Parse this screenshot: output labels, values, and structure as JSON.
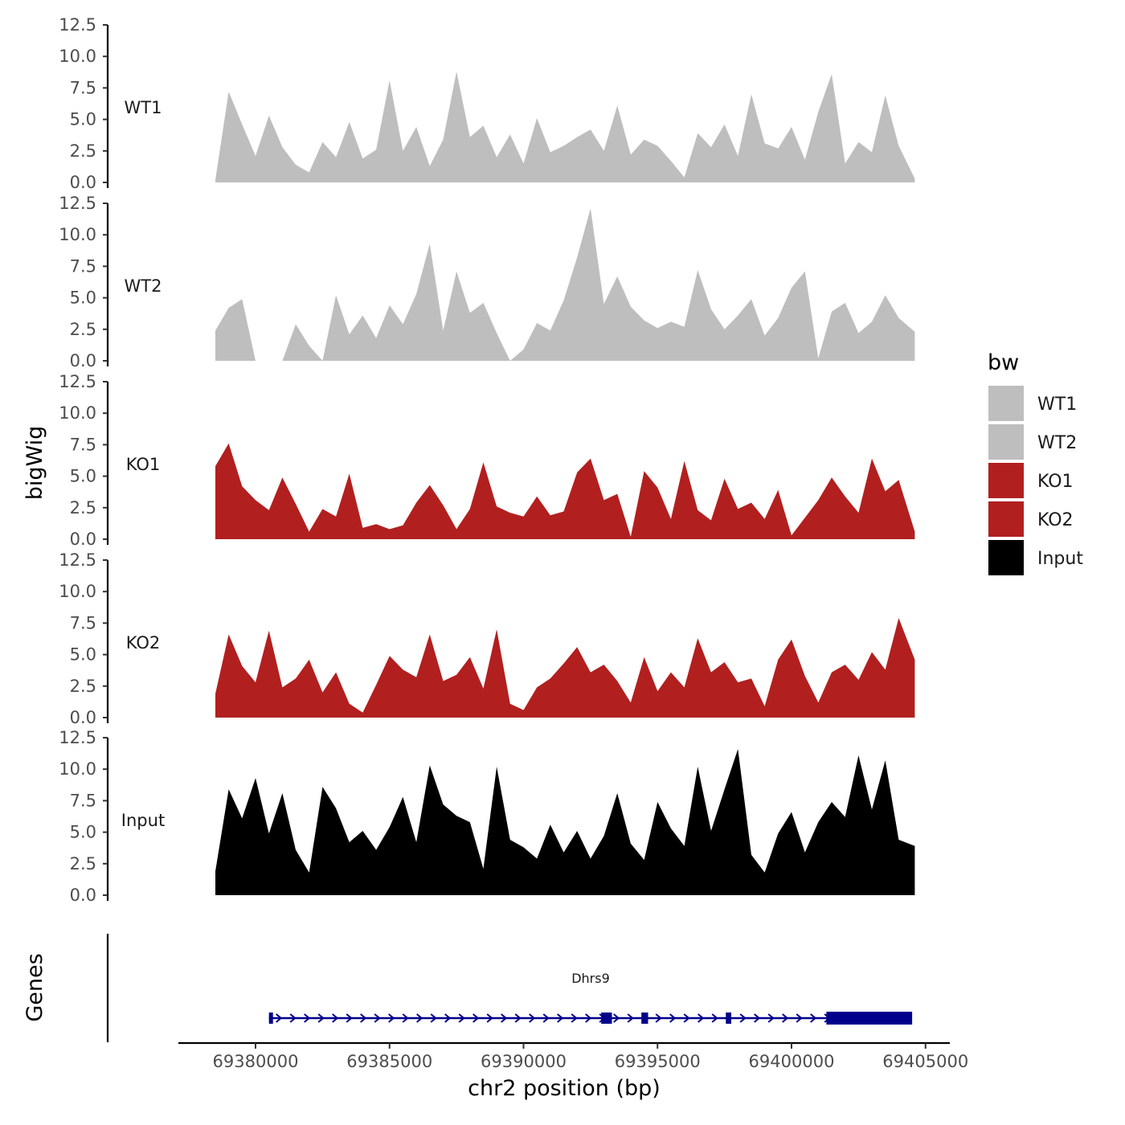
{
  "chart_data": {
    "type": "area",
    "y_title": "bigWig",
    "x_title": "chr2 position (bp)",
    "genes_title": "Genes",
    "ylim": [
      0,
      12.5
    ],
    "y_ticks": [
      "0.0",
      "2.5",
      "5.0",
      "7.5",
      "10.0",
      "12.5"
    ],
    "y_tick_values": [
      0,
      2.5,
      5,
      7.5,
      10,
      12.5
    ],
    "xlim": [
      69378500,
      69404600
    ],
    "x_ticks": [
      69380000,
      69385000,
      69390000,
      69395000,
      69400000,
      69405000
    ],
    "x_tick_labels": [
      "69380000",
      "69385000",
      "69390000",
      "69395000",
      "69400000",
      "69405000"
    ],
    "legend": {
      "title": "bw",
      "entries": [
        {
          "label": "WT1",
          "color": "#bebebe"
        },
        {
          "label": "WT2",
          "color": "#bebebe"
        },
        {
          "label": "KO1",
          "color": "#b21f1f"
        },
        {
          "label": "KO2",
          "color": "#b21f1f"
        },
        {
          "label": "Input",
          "color": "#000000"
        }
      ]
    },
    "series": [
      {
        "name": "WT1",
        "color": "#bebebe",
        "x": [
          69378500,
          69379000,
          69379500,
          69380000,
          69380500,
          69381000,
          69381500,
          69382000,
          69382500,
          69383000,
          69383500,
          69384000,
          69384500,
          69385000,
          69385500,
          69386000,
          69386500,
          69387000,
          69387500,
          69388000,
          69388500,
          69389000,
          69389500,
          69390000,
          69390500,
          69391000,
          69391500,
          69392000,
          69392500,
          69393000,
          69393500,
          69394000,
          69394500,
          69395000,
          69395500,
          69396000,
          69396500,
          69397000,
          69397500,
          69398000,
          69398500,
          69399000,
          69399500,
          69400000,
          69400500,
          69401000,
          69401500,
          69402000,
          69402500,
          69403000,
          69403500,
          69404000,
          69404600
        ],
        "values": [
          0.2,
          7.2,
          4.6,
          2.1,
          5.3,
          2.8,
          1.4,
          0.8,
          3.2,
          2.0,
          4.8,
          1.9,
          2.6,
          8.1,
          2.5,
          4.4,
          1.3,
          3.4,
          8.8,
          3.6,
          4.5,
          2.0,
          3.8,
          1.5,
          5.1,
          2.4,
          2.9,
          3.6,
          4.2,
          2.5,
          6.1,
          2.2,
          3.4,
          2.9,
          1.7,
          0.4,
          3.9,
          2.8,
          4.6,
          2.1,
          7.0,
          3.1,
          2.7,
          4.4,
          1.8,
          5.6,
          8.6,
          1.5,
          3.2,
          2.4,
          6.9,
          2.9,
          0.3
        ]
      },
      {
        "name": "WT2",
        "color": "#bebebe",
        "x": [
          69378500,
          69379000,
          69379500,
          69380000,
          69380500,
          69381000,
          69381500,
          69382000,
          69382500,
          69383000,
          69383500,
          69384000,
          69384500,
          69385000,
          69385500,
          69386000,
          69386500,
          69387000,
          69387500,
          69388000,
          69388500,
          69389000,
          69389500,
          69390000,
          69390500,
          69391000,
          69391500,
          69392000,
          69392500,
          69393000,
          69393500,
          69394000,
          69394500,
          69395000,
          69395500,
          69396000,
          69396500,
          69397000,
          69397500,
          69398000,
          69398500,
          69399000,
          69399500,
          69400000,
          69400500,
          69401000,
          69401500,
          69402000,
          69402500,
          69403000,
          69403500,
          69404000,
          69404600
        ],
        "values": [
          2.4,
          4.2,
          4.9,
          0.0,
          0.0,
          0.0,
          2.9,
          1.2,
          0.0,
          5.2,
          2.1,
          3.6,
          1.8,
          4.4,
          2.9,
          5.3,
          9.3,
          2.4,
          7.1,
          3.8,
          4.6,
          2.2,
          0.0,
          0.9,
          3.0,
          2.4,
          4.8,
          8.2,
          12.1,
          4.5,
          6.7,
          4.3,
          3.2,
          2.6,
          3.1,
          2.7,
          7.2,
          4.1,
          2.5,
          3.6,
          4.9,
          2.0,
          3.4,
          5.8,
          7.1,
          0.2,
          3.9,
          4.6,
          2.2,
          3.1,
          5.2,
          3.4,
          2.3
        ]
      },
      {
        "name": "KO1",
        "color": "#b21f1f",
        "x": [
          69378500,
          69379000,
          69379500,
          69380000,
          69380500,
          69381000,
          69381500,
          69382000,
          69382500,
          69383000,
          69383500,
          69384000,
          69384500,
          69385000,
          69385500,
          69386000,
          69386500,
          69387000,
          69387500,
          69388000,
          69388500,
          69389000,
          69389500,
          69390000,
          69390500,
          69391000,
          69391500,
          69392000,
          69392500,
          69393000,
          69393500,
          69394000,
          69394500,
          69395000,
          69395500,
          69396000,
          69396500,
          69397000,
          69397500,
          69398000,
          69398500,
          69399000,
          69399500,
          69400000,
          69400500,
          69401000,
          69401500,
          69402000,
          69402500,
          69403000,
          69403500,
          69404000,
          69404600
        ],
        "values": [
          5.8,
          7.6,
          4.2,
          3.1,
          2.3,
          4.9,
          2.8,
          0.6,
          2.4,
          1.8,
          5.2,
          0.9,
          1.2,
          0.8,
          1.1,
          2.9,
          4.3,
          2.7,
          0.8,
          2.4,
          6.1,
          2.6,
          2.1,
          1.8,
          3.4,
          1.9,
          2.2,
          5.3,
          6.4,
          3.1,
          3.6,
          0.2,
          5.4,
          4.1,
          1.6,
          6.2,
          2.3,
          1.5,
          4.8,
          2.4,
          2.9,
          1.6,
          3.9,
          0.3,
          1.7,
          3.1,
          4.9,
          3.4,
          2.1,
          6.4,
          3.8,
          4.7,
          0.6
        ]
      },
      {
        "name": "KO2",
        "color": "#b21f1f",
        "x": [
          69378500,
          69379000,
          69379500,
          69380000,
          69380500,
          69381000,
          69381500,
          69382000,
          69382500,
          69383000,
          69383500,
          69384000,
          69384500,
          69385000,
          69385500,
          69386000,
          69386500,
          69387000,
          69387500,
          69388000,
          69388500,
          69389000,
          69389500,
          69390000,
          69390500,
          69391000,
          69391500,
          69392000,
          69392500,
          69393000,
          69393500,
          69394000,
          69394500,
          69395000,
          69395500,
          69396000,
          69396500,
          69397000,
          69397500,
          69398000,
          69398500,
          69399000,
          69399500,
          69400000,
          69400500,
          69401000,
          69401500,
          69402000,
          69402500,
          69403000,
          69403500,
          69404000,
          69404600
        ],
        "values": [
          1.9,
          6.6,
          4.1,
          2.8,
          6.9,
          2.4,
          3.1,
          4.6,
          2.0,
          3.6,
          1.1,
          0.4,
          2.6,
          4.9,
          3.8,
          3.2,
          6.6,
          2.9,
          3.4,
          4.8,
          2.3,
          7.0,
          1.1,
          0.6,
          2.4,
          3.1,
          4.3,
          5.6,
          3.6,
          4.2,
          2.9,
          1.2,
          4.8,
          2.1,
          3.6,
          2.4,
          6.3,
          3.6,
          4.4,
          2.8,
          3.1,
          0.9,
          4.6,
          6.2,
          3.3,
          1.2,
          3.6,
          4.2,
          3.0,
          5.2,
          3.8,
          7.9,
          4.6
        ]
      },
      {
        "name": "Input",
        "color": "#000000",
        "x": [
          69378500,
          69379000,
          69379500,
          69380000,
          69380500,
          69381000,
          69381500,
          69382000,
          69382500,
          69383000,
          69383500,
          69384000,
          69384500,
          69385000,
          69385500,
          69386000,
          69386500,
          69387000,
          69387500,
          69388000,
          69388500,
          69389000,
          69389500,
          69390000,
          69390500,
          69391000,
          69391500,
          69392000,
          69392500,
          69393000,
          69393500,
          69394000,
          69394500,
          69395000,
          69395500,
          69396000,
          69396500,
          69397000,
          69397500,
          69398000,
          69398500,
          69399000,
          69399500,
          69400000,
          69400500,
          69401000,
          69401500,
          69402000,
          69402500,
          69403000,
          69403500,
          69404000,
          69404600
        ],
        "values": [
          1.9,
          8.4,
          6.1,
          9.3,
          4.9,
          8.1,
          3.6,
          1.8,
          8.6,
          6.9,
          4.2,
          5.1,
          3.6,
          5.4,
          7.8,
          4.2,
          10.3,
          7.2,
          6.3,
          5.8,
          2.1,
          10.2,
          4.4,
          3.8,
          2.9,
          5.6,
          3.4,
          5.1,
          2.9,
          4.7,
          8.1,
          4.1,
          2.8,
          7.4,
          5.3,
          3.9,
          10.2,
          5.1,
          8.4,
          11.6,
          3.2,
          1.8,
          4.9,
          6.6,
          3.4,
          5.8,
          7.4,
          6.2,
          11.1,
          6.8,
          10.7,
          4.4,
          3.9
        ]
      }
    ],
    "gene": {
      "name": "Dhrs9",
      "start": 69380500,
      "end": 69404500,
      "color": "#00008b",
      "exons": [
        [
          69380500,
          69380650
        ],
        [
          69392900,
          69393300
        ],
        [
          69394400,
          69394650
        ],
        [
          69397550,
          69397750
        ],
        [
          69401300,
          69404500
        ]
      ]
    }
  }
}
